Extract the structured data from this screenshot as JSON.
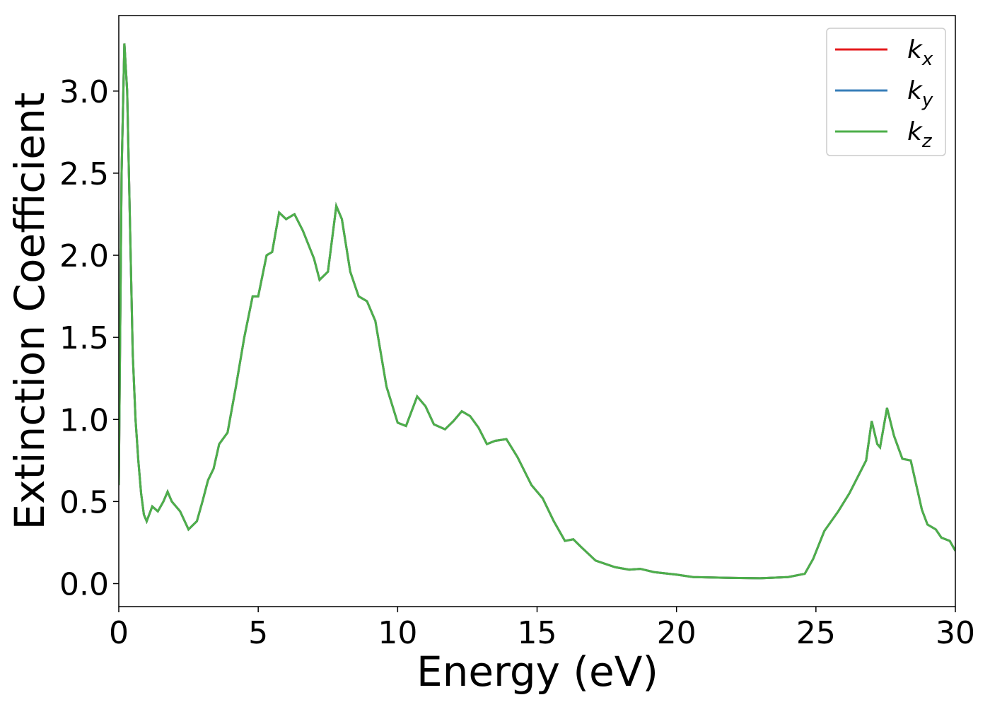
{
  "chart_data": {
    "type": "line",
    "xlabel": "Energy (eV)",
    "ylabel": "Extinction Coefficient",
    "x": [
      0,
      0.1,
      0.2,
      0.3,
      0.4,
      0.5,
      0.6,
      0.7,
      0.8,
      0.9,
      1.0,
      1.2,
      1.4,
      1.6,
      1.75,
      1.9,
      2.2,
      2.5,
      2.8,
      3.0,
      3.2,
      3.4,
      3.6,
      3.9,
      4.2,
      4.5,
      4.8,
      5.0,
      5.3,
      5.5,
      5.75,
      6.0,
      6.3,
      6.6,
      7.0,
      7.2,
      7.5,
      7.8,
      8.0,
      8.3,
      8.6,
      8.9,
      9.2,
      9.6,
      10.0,
      10.3,
      10.7,
      11.0,
      11.3,
      11.7,
      12.0,
      12.3,
      12.6,
      12.9,
      13.2,
      13.5,
      13.9,
      14.3,
      14.8,
      15.2,
      15.6,
      16.0,
      16.3,
      16.6,
      17.1,
      17.8,
      18.3,
      18.7,
      19.2,
      20.0,
      20.6,
      22.0,
      23.0,
      24.0,
      24.6,
      24.9,
      25.3,
      25.8,
      26.2,
      26.5,
      26.8,
      27.0,
      27.2,
      27.3,
      27.55,
      27.8,
      28.1,
      28.4,
      28.8,
      29.0,
      29.3,
      29.5,
      29.8,
      30.0
    ],
    "series": [
      {
        "name": "kx",
        "color": "#e41a1c",
        "values": [
          0.6,
          2.5,
          3.29,
          3.0,
          2.2,
          1.4,
          1.0,
          0.75,
          0.55,
          0.42,
          0.38,
          0.47,
          0.44,
          0.5,
          0.56,
          0.5,
          0.44,
          0.33,
          0.38,
          0.5,
          0.63,
          0.7,
          0.85,
          0.92,
          1.2,
          1.5,
          1.75,
          1.75,
          2.0,
          2.02,
          2.26,
          2.22,
          2.25,
          2.15,
          1.98,
          1.85,
          1.9,
          2.3,
          2.22,
          1.9,
          1.75,
          1.72,
          1.6,
          1.2,
          0.98,
          0.96,
          1.14,
          1.08,
          0.97,
          0.94,
          0.99,
          1.05,
          1.02,
          0.95,
          0.85,
          0.87,
          0.88,
          0.77,
          0.6,
          0.52,
          0.38,
          0.26,
          0.27,
          0.22,
          0.14,
          0.1,
          0.085,
          0.09,
          0.07,
          0.055,
          0.04,
          0.035,
          0.033,
          0.04,
          0.06,
          0.15,
          0.32,
          0.44,
          0.55,
          0.65,
          0.75,
          0.99,
          0.85,
          0.83,
          1.07,
          0.9,
          0.76,
          0.75,
          0.45,
          0.36,
          0.33,
          0.28,
          0.26,
          0.2
        ]
      },
      {
        "name": "ky",
        "color": "#377eb8",
        "values": [
          0.6,
          2.5,
          3.29,
          3.0,
          2.2,
          1.4,
          1.0,
          0.75,
          0.55,
          0.42,
          0.38,
          0.47,
          0.44,
          0.5,
          0.56,
          0.5,
          0.44,
          0.33,
          0.38,
          0.5,
          0.63,
          0.7,
          0.85,
          0.92,
          1.2,
          1.5,
          1.75,
          1.75,
          2.0,
          2.02,
          2.26,
          2.22,
          2.25,
          2.15,
          1.98,
          1.85,
          1.9,
          2.3,
          2.22,
          1.9,
          1.75,
          1.72,
          1.6,
          1.2,
          0.98,
          0.96,
          1.14,
          1.08,
          0.97,
          0.94,
          0.99,
          1.05,
          1.02,
          0.95,
          0.85,
          0.87,
          0.88,
          0.77,
          0.6,
          0.52,
          0.38,
          0.26,
          0.27,
          0.22,
          0.14,
          0.1,
          0.085,
          0.09,
          0.07,
          0.055,
          0.04,
          0.035,
          0.033,
          0.04,
          0.06,
          0.15,
          0.32,
          0.44,
          0.55,
          0.65,
          0.75,
          0.99,
          0.85,
          0.83,
          1.07,
          0.9,
          0.76,
          0.75,
          0.45,
          0.36,
          0.33,
          0.28,
          0.26,
          0.2
        ]
      },
      {
        "name": "kz",
        "color": "#4daf4a",
        "values": [
          0.6,
          2.5,
          3.29,
          3.0,
          2.2,
          1.4,
          1.0,
          0.75,
          0.55,
          0.42,
          0.38,
          0.47,
          0.44,
          0.5,
          0.56,
          0.5,
          0.44,
          0.33,
          0.38,
          0.5,
          0.63,
          0.7,
          0.85,
          0.92,
          1.2,
          1.5,
          1.75,
          1.75,
          2.0,
          2.02,
          2.26,
          2.22,
          2.25,
          2.15,
          1.98,
          1.85,
          1.9,
          2.3,
          2.22,
          1.9,
          1.75,
          1.72,
          1.6,
          1.2,
          0.98,
          0.96,
          1.14,
          1.08,
          0.97,
          0.94,
          0.99,
          1.05,
          1.02,
          0.95,
          0.85,
          0.87,
          0.88,
          0.77,
          0.6,
          0.52,
          0.38,
          0.26,
          0.27,
          0.22,
          0.14,
          0.1,
          0.085,
          0.09,
          0.07,
          0.055,
          0.04,
          0.035,
          0.033,
          0.04,
          0.06,
          0.15,
          0.32,
          0.44,
          0.55,
          0.65,
          0.75,
          0.99,
          0.85,
          0.83,
          1.07,
          0.9,
          0.76,
          0.75,
          0.45,
          0.36,
          0.33,
          0.28,
          0.26,
          0.2
        ]
      }
    ],
    "xlim": [
      0,
      30
    ],
    "xticks": [
      0,
      5,
      10,
      15,
      20,
      25,
      30
    ],
    "ylim": [
      -0.14,
      3.46
    ],
    "yticks": [
      {
        "value": 0,
        "label": "0.0"
      },
      0.5,
      {
        "value": 1,
        "label": "1.0"
      },
      1.5,
      {
        "value": 2,
        "label": "2.0"
      },
      2.5,
      {
        "value": 3,
        "label": "3.0"
      }
    ],
    "grid": false,
    "legend": "upper right"
  }
}
